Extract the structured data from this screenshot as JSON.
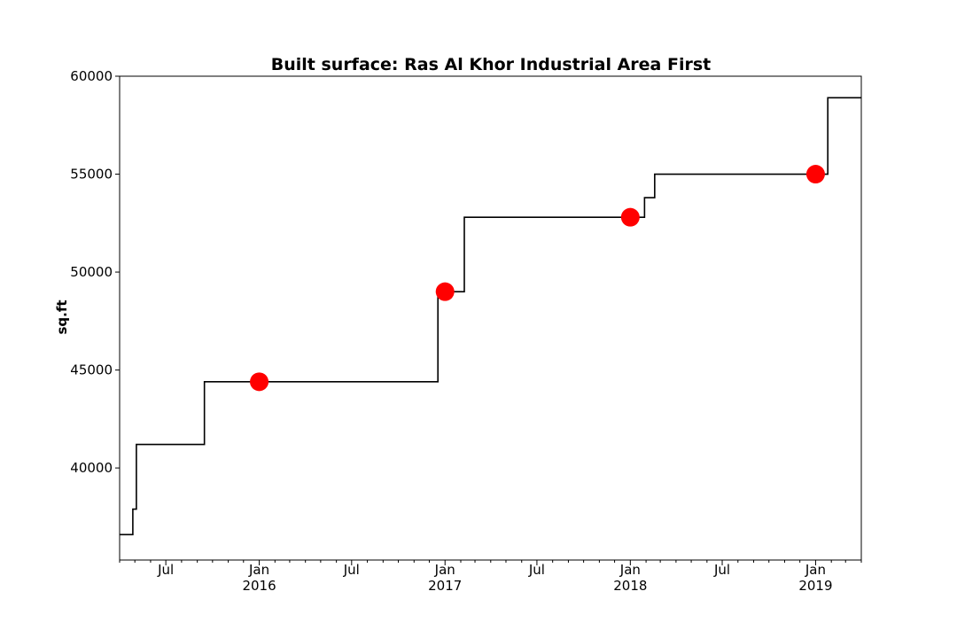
{
  "chart_data": {
    "type": "line",
    "title": "Built surface: Ras Al Khor Industrial Area First",
    "xlabel": "",
    "ylabel": "sq.ft",
    "xlim": [
      "2015-04-01",
      "2019-04-01"
    ],
    "ylim": [
      35300,
      60000
    ],
    "y_ticks": [
      40000,
      45000,
      50000,
      55000,
      60000
    ],
    "x_ticks": [
      {
        "date": "2015-07-01",
        "label": "Jul",
        "sublabel": ""
      },
      {
        "date": "2016-01-01",
        "label": "Jan",
        "sublabel": "2016"
      },
      {
        "date": "2016-07-01",
        "label": "Jul",
        "sublabel": ""
      },
      {
        "date": "2017-01-01",
        "label": "Jan",
        "sublabel": "2017"
      },
      {
        "date": "2017-07-01",
        "label": "Jul",
        "sublabel": ""
      },
      {
        "date": "2018-01-01",
        "label": "Jan",
        "sublabel": "2018"
      },
      {
        "date": "2018-07-01",
        "label": "Jul",
        "sublabel": ""
      },
      {
        "date": "2019-01-01",
        "label": "Jan",
        "sublabel": "2019"
      }
    ],
    "grid": false,
    "series": [
      {
        "kind": "step",
        "color": "#000000",
        "points": [
          {
            "x": "2015-04-01",
            "y": 36600
          },
          {
            "x": "2015-04-27",
            "y": 37900
          },
          {
            "x": "2015-05-04",
            "y": 41200
          },
          {
            "x": "2015-09-15",
            "y": 44400
          },
          {
            "x": "2016-12-18",
            "y": 49000
          },
          {
            "x": "2017-02-08",
            "y": 52800
          },
          {
            "x": "2018-01-29",
            "y": 53800
          },
          {
            "x": "2018-02-18",
            "y": 55000
          },
          {
            "x": "2019-01-25",
            "y": 58900
          },
          {
            "x": "2019-04-01",
            "y": 58900
          }
        ]
      },
      {
        "kind": "markers",
        "color": "#ff0000",
        "points": [
          {
            "x": "2016-01-01",
            "y": 44400
          },
          {
            "x": "2017-01-01",
            "y": 49000
          },
          {
            "x": "2018-01-01",
            "y": 52800
          },
          {
            "x": "2019-01-01",
            "y": 55000
          }
        ]
      }
    ]
  }
}
